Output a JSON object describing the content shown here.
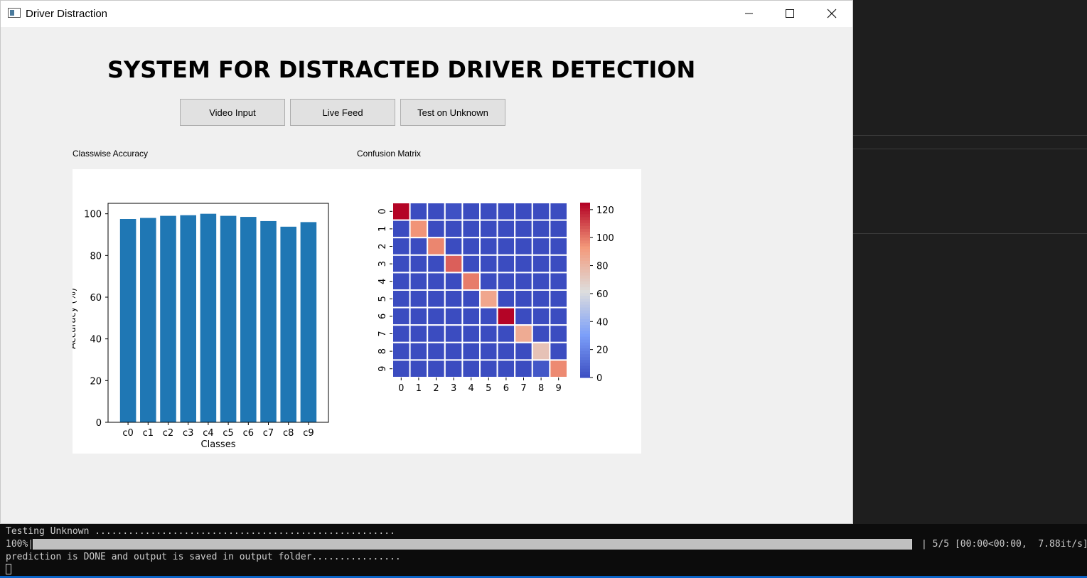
{
  "window": {
    "title": "Driver Distraction"
  },
  "heading": "SYSTEM FOR DISTRACTED DRIVER DETECTION",
  "buttons": {
    "video": "Video Input",
    "live": "Live Feed",
    "test": "Test on Unknown"
  },
  "labels": {
    "accuracy": "Classwise Accuracy",
    "confusion": "Confusion Matrix"
  },
  "chart_data": [
    {
      "type": "bar",
      "categories": [
        "c0",
        "c1",
        "c2",
        "c3",
        "c4",
        "c5",
        "c6",
        "c7",
        "c8",
        "c9"
      ],
      "values": [
        97.5,
        98,
        99,
        99.3,
        100,
        99,
        98.5,
        96.5,
        93.8,
        96
      ],
      "xlabel": "Classes",
      "ylabel": "Accuracy (%)",
      "ylim": [
        0,
        105
      ],
      "yticks": [
        0,
        20,
        40,
        60,
        80,
        100
      ],
      "color": "#1f77b4"
    },
    {
      "type": "heatmap",
      "x": [
        "0",
        "1",
        "2",
        "3",
        "4",
        "5",
        "6",
        "7",
        "8",
        "9"
      ],
      "y": [
        "0",
        "1",
        "2",
        "3",
        "4",
        "5",
        "6",
        "7",
        "8",
        "9"
      ],
      "values": [
        [
          125,
          0,
          0,
          2,
          0,
          0,
          0,
          0,
          0,
          0
        ],
        [
          0,
          95,
          0,
          0,
          0,
          0,
          0,
          0,
          0,
          0
        ],
        [
          0,
          0,
          98,
          0,
          0,
          0,
          0,
          0,
          0,
          0
        ],
        [
          0,
          0,
          0,
          106,
          0,
          0,
          0,
          0,
          0,
          0
        ],
        [
          0,
          0,
          0,
          0,
          100,
          0,
          0,
          0,
          0,
          0
        ],
        [
          0,
          0,
          0,
          0,
          0,
          88,
          0,
          0,
          0,
          0
        ],
        [
          0,
          0,
          0,
          0,
          0,
          0,
          125,
          0,
          0,
          0
        ],
        [
          0,
          0,
          0,
          0,
          0,
          0,
          0,
          86,
          0,
          0
        ],
        [
          0,
          0,
          0,
          0,
          0,
          0,
          0,
          0,
          75,
          0
        ],
        [
          0,
          0,
          0,
          0,
          0,
          0,
          0,
          0,
          4,
          97
        ]
      ],
      "colorbar_ticks": [
        0,
        20,
        40,
        60,
        80,
        100,
        120
      ],
      "vmin": 0,
      "vmax": 125,
      "colormap": "coolwarm"
    }
  ],
  "console": {
    "line1": "Testing Unknown ......................................................",
    "pct": "100%|",
    "stats": "| 5/5 [00:00<00:00,  7.88it/s]",
    "line3": "prediction is DONE and output is saved in output folder................"
  }
}
